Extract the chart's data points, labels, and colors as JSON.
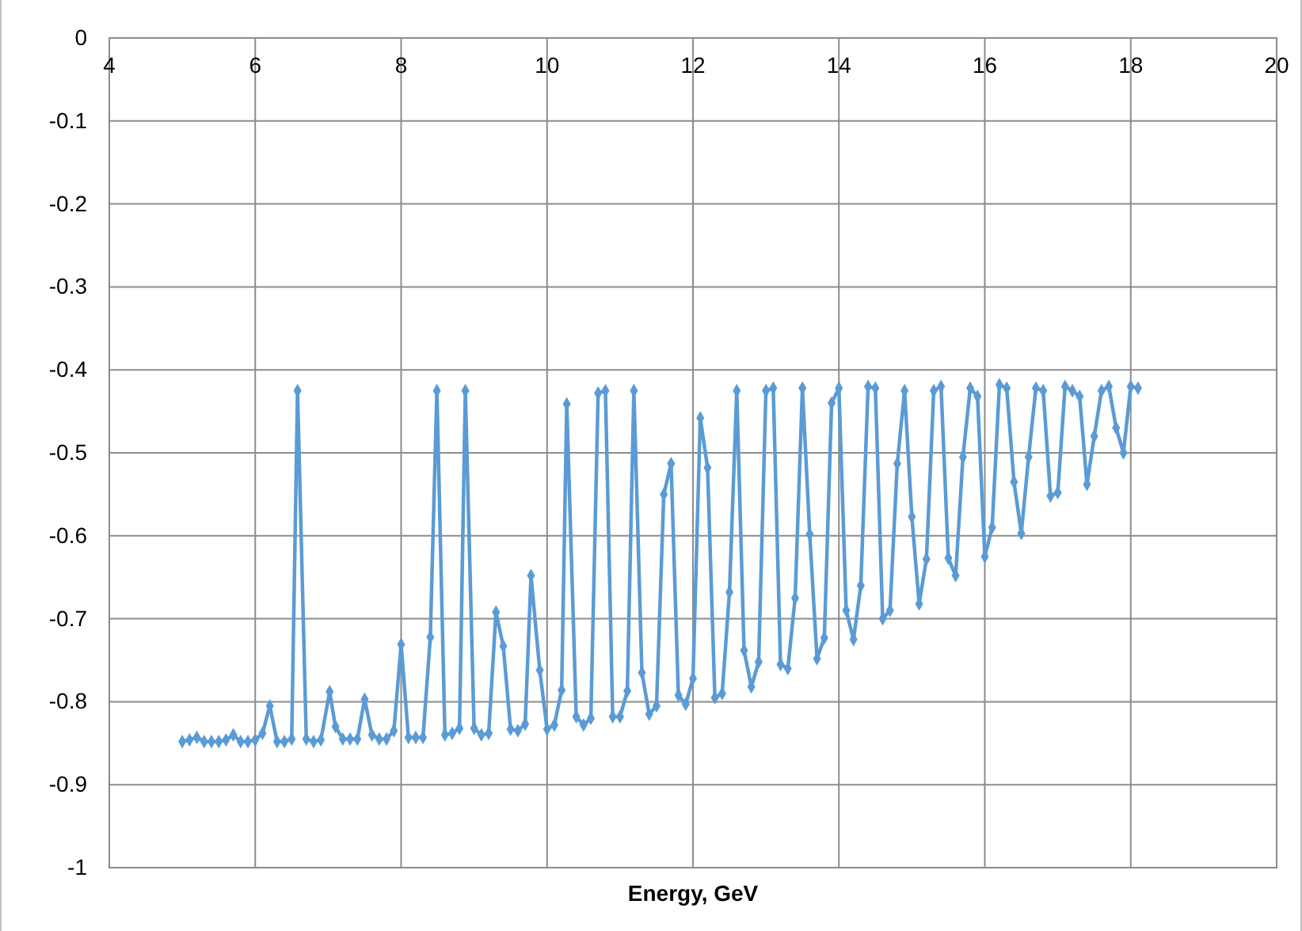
{
  "chart_data": {
    "type": "line",
    "xlabel": "Energy, GeV",
    "xlim": [
      4,
      20
    ],
    "xticks": [
      4,
      6,
      8,
      10,
      12,
      14,
      16,
      18,
      20
    ],
    "ylim": [
      -1,
      0
    ],
    "yticks": [
      -1,
      -0.9,
      -0.8,
      -0.7,
      -0.6,
      -0.5,
      -0.4,
      -0.3,
      -0.2,
      -0.1,
      0
    ],
    "grid": true,
    "marker": "diamond",
    "line_style": "solid",
    "x": [
      5.0,
      5.1,
      5.2,
      5.3,
      5.4,
      5.5,
      5.6,
      5.7,
      5.8,
      5.9,
      6.0,
      6.1,
      6.2,
      6.3,
      6.4,
      6.5,
      6.58,
      6.7,
      6.8,
      6.9,
      7.02,
      7.1,
      7.2,
      7.3,
      7.4,
      7.5,
      7.6,
      7.7,
      7.8,
      7.9,
      8.0,
      8.1,
      8.2,
      8.3,
      8.4,
      8.49,
      8.6,
      8.7,
      8.8,
      8.88,
      9.0,
      9.1,
      9.2,
      9.3,
      9.4,
      9.5,
      9.6,
      9.7,
      9.78,
      9.9,
      10.0,
      10.1,
      10.2,
      10.27,
      10.4,
      10.5,
      10.6,
      10.7,
      10.8,
      10.9,
      11.0,
      11.1,
      11.19,
      11.3,
      11.4,
      11.5,
      11.6,
      11.7,
      11.8,
      11.9,
      12.0,
      12.1,
      12.2,
      12.3,
      12.4,
      12.5,
      12.6,
      12.7,
      12.8,
      12.9,
      13.0,
      13.1,
      13.2,
      13.3,
      13.4,
      13.5,
      13.6,
      13.7,
      13.8,
      13.9,
      14.0,
      14.1,
      14.2,
      14.3,
      14.4,
      14.5,
      14.6,
      14.7,
      14.8,
      14.9,
      15.0,
      15.1,
      15.2,
      15.3,
      15.4,
      15.5,
      15.6,
      15.7,
      15.8,
      15.9,
      16.0,
      16.1,
      16.2,
      16.3,
      16.4,
      16.5,
      16.6,
      16.7,
      16.8,
      16.9,
      17.0,
      17.1,
      17.2,
      17.3,
      17.4,
      17.5,
      17.6,
      17.7,
      17.8,
      17.9,
      18.0,
      18.1
    ],
    "series": [
      {
        "color": "#5b9bd5",
        "values": [
          -0.848,
          -0.846,
          -0.843,
          -0.848,
          -0.848,
          -0.848,
          -0.846,
          -0.84,
          -0.848,
          -0.848,
          -0.846,
          -0.838,
          -0.805,
          -0.848,
          -0.848,
          -0.845,
          -0.425,
          -0.845,
          -0.848,
          -0.846,
          -0.788,
          -0.83,
          -0.845,
          -0.845,
          -0.845,
          -0.797,
          -0.84,
          -0.845,
          -0.845,
          -0.835,
          -0.731,
          -0.843,
          -0.843,
          -0.843,
          -0.722,
          -0.425,
          -0.84,
          -0.838,
          -0.832,
          -0.425,
          -0.832,
          -0.84,
          -0.838,
          -0.692,
          -0.733,
          -0.833,
          -0.835,
          -0.827,
          -0.648,
          -0.762,
          -0.833,
          -0.828,
          -0.786,
          -0.441,
          -0.818,
          -0.828,
          -0.82,
          -0.428,
          -0.425,
          -0.818,
          -0.818,
          -0.787,
          -0.425,
          -0.765,
          -0.815,
          -0.805,
          -0.55,
          -0.513,
          -0.792,
          -0.803,
          -0.772,
          -0.458,
          -0.518,
          -0.795,
          -0.79,
          -0.668,
          -0.425,
          -0.738,
          -0.782,
          -0.752,
          -0.425,
          -0.422,
          -0.755,
          -0.76,
          -0.675,
          -0.422,
          -0.598,
          -0.748,
          -0.723,
          -0.44,
          -0.422,
          -0.69,
          -0.725,
          -0.66,
          -0.42,
          -0.422,
          -0.7,
          -0.69,
          -0.513,
          -0.425,
          -0.577,
          -0.682,
          -0.628,
          -0.425,
          -0.42,
          -0.627,
          -0.648,
          -0.505,
          -0.422,
          -0.432,
          -0.625,
          -0.59,
          -0.418,
          -0.422,
          -0.535,
          -0.597,
          -0.505,
          -0.422,
          -0.425,
          -0.552,
          -0.548,
          -0.42,
          -0.425,
          -0.432,
          -0.538,
          -0.48,
          -0.425,
          -0.42,
          -0.47,
          -0.5,
          -0.42,
          -0.422
        ]
      }
    ]
  }
}
